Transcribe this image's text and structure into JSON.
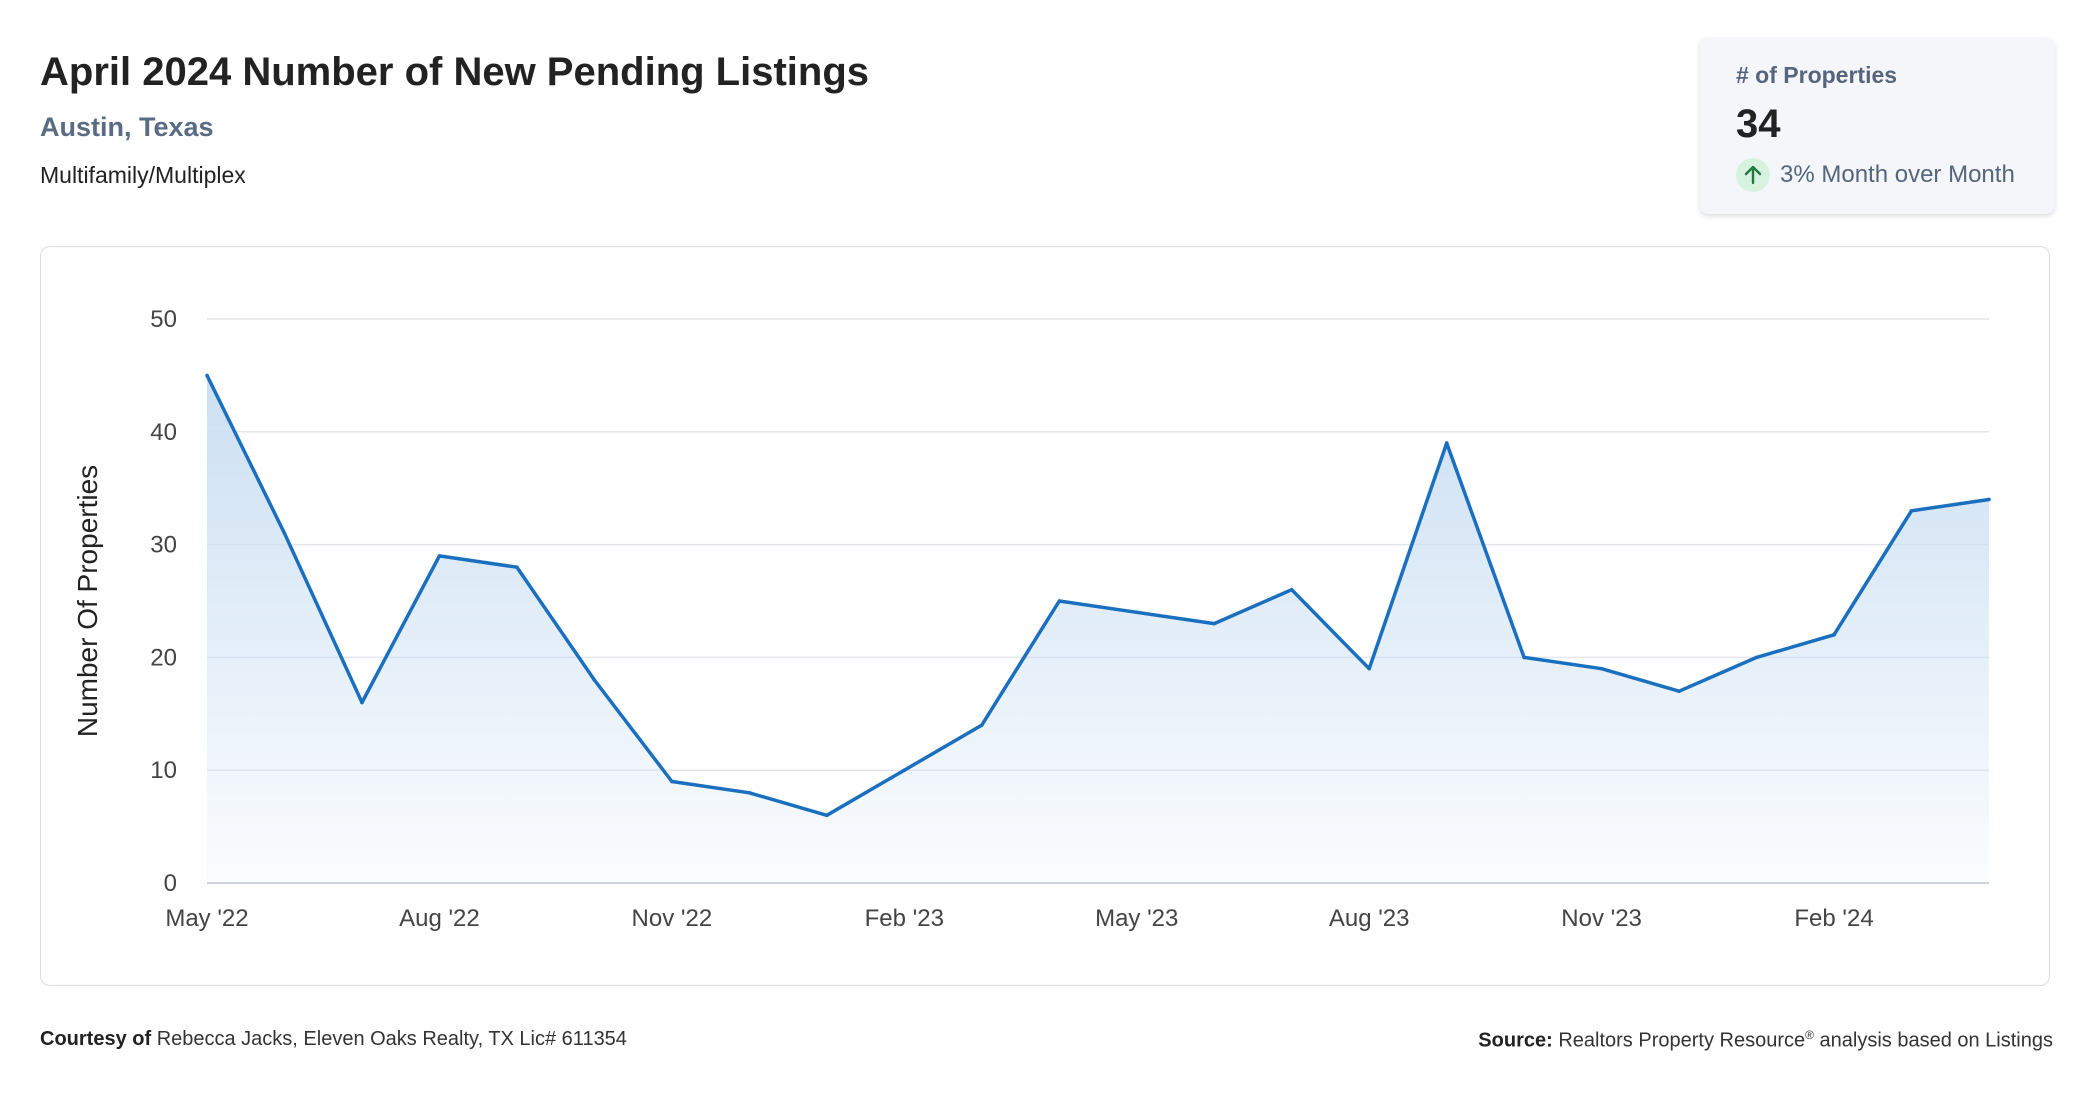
{
  "header": {
    "title": "April 2024 Number of New Pending Listings",
    "location": "Austin, Texas",
    "property_type": "Multifamily/Multiplex"
  },
  "stat_card": {
    "label": "# of Properties",
    "value": "34",
    "change_text": "3% Month over Month",
    "change_icon": "arrow-up-icon",
    "change_color": "#1f7a3c"
  },
  "footer": {
    "courtesy_label": "Courtesy of",
    "courtesy_text": "Rebecca Jacks, Eleven Oaks Realty, TX Lic# 611354",
    "source_label": "Source:",
    "source_name": "Realtors Property Resource",
    "source_mark": "®",
    "source_rest": "analysis based on Listings"
  },
  "colors": {
    "line": "#1a6fbf",
    "area_top": "#c9def2",
    "grid": "#e3e6eb"
  },
  "chart_data": {
    "type": "area",
    "ylabel": "Number Of Properties",
    "xlabel": "",
    "ylim": [
      0,
      50
    ],
    "yticks": [
      0,
      10,
      20,
      30,
      40,
      50
    ],
    "x": [
      "2022-05",
      "2022-06",
      "2022-07",
      "2022-08",
      "2022-09",
      "2022-10",
      "2022-11",
      "2022-12",
      "2023-01",
      "2023-02",
      "2023-03",
      "2023-04",
      "2023-05",
      "2023-06",
      "2023-07",
      "2023-08",
      "2023-09",
      "2023-10",
      "2023-11",
      "2023-12",
      "2024-01",
      "2024-02",
      "2024-03",
      "2024-04"
    ],
    "xtick_labels": [
      "May '22",
      "Aug '22",
      "Nov '22",
      "Feb '23",
      "May '23",
      "Aug '23",
      "Nov '23",
      "Feb '24"
    ],
    "xtick_months": [
      "2022-05",
      "2022-08",
      "2022-11",
      "2023-02",
      "2023-05",
      "2023-08",
      "2023-11",
      "2024-02"
    ],
    "series": [
      {
        "values": [
          45,
          31,
          16,
          29,
          28,
          18,
          9,
          8,
          6,
          10,
          14,
          25,
          24,
          23,
          26,
          19,
          39,
          20,
          19,
          17,
          20,
          22,
          33,
          34
        ]
      }
    ],
    "grid": true,
    "legend": "none"
  }
}
